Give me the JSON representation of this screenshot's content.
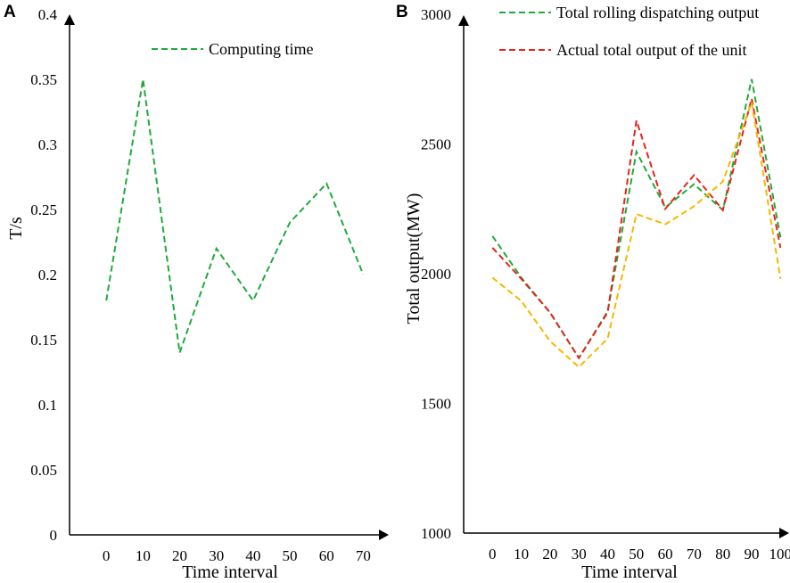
{
  "chart_data": [
    {
      "panel": "A",
      "type": "line",
      "xlabel": "Time interval",
      "ylabel": "T/s",
      "xlim": [
        -10,
        75
      ],
      "ylim": [
        0,
        0.4
      ],
      "xticks": [
        0,
        10,
        20,
        30,
        40,
        50,
        60,
        70
      ],
      "yticks": [
        "0",
        "0.05",
        "0.1",
        "0.15",
        "0.2",
        "0.25",
        "0.3",
        "0.35",
        "0.4"
      ],
      "legend_position": "top-center",
      "series": [
        {
          "name": "Computing time",
          "color": "#1faa3b",
          "x": [
            0,
            10,
            20,
            30,
            40,
            50,
            60,
            70
          ],
          "values": [
            0.18,
            0.35,
            0.14,
            0.22,
            0.18,
            0.24,
            0.27,
            0.2
          ]
        }
      ]
    },
    {
      "panel": "B",
      "type": "line",
      "xlabel": "Time interval",
      "ylabel": "Total output(MW)",
      "xlim": [
        -10,
        103
      ],
      "ylim": [
        1000,
        3000
      ],
      "xticks": [
        0,
        10,
        20,
        30,
        40,
        50,
        60,
        70,
        80,
        90,
        100
      ],
      "yticks": [
        "1000",
        "1500",
        "2000",
        "2500",
        "3000"
      ],
      "legend_position": "top",
      "series": [
        {
          "name": "Total rolling dispatching output",
          "color": "#1faa3b",
          "x": [
            0,
            10,
            20,
            30,
            40,
            50,
            60,
            70,
            80,
            90,
            100
          ],
          "values": [
            2145,
            1985,
            1850,
            1675,
            1855,
            2470,
            2255,
            2345,
            2245,
            2750,
            2140
          ]
        },
        {
          "name": "Actual total output of the unit",
          "color": "#e8231d",
          "x": [
            0,
            10,
            20,
            30,
            40,
            50,
            60,
            70,
            80,
            90,
            100
          ],
          "values": [
            2100,
            1980,
            1850,
            1675,
            1850,
            2590,
            2250,
            2380,
            2245,
            2675,
            2100
          ]
        },
        {
          "name": "",
          "color": "#f5b800",
          "x": [
            0,
            10,
            20,
            30,
            40,
            50,
            60,
            70,
            80,
            90,
            100
          ],
          "values": [
            1985,
            1895,
            1740,
            1640,
            1750,
            2230,
            2190,
            2260,
            2355,
            2660,
            1980
          ]
        }
      ]
    }
  ]
}
